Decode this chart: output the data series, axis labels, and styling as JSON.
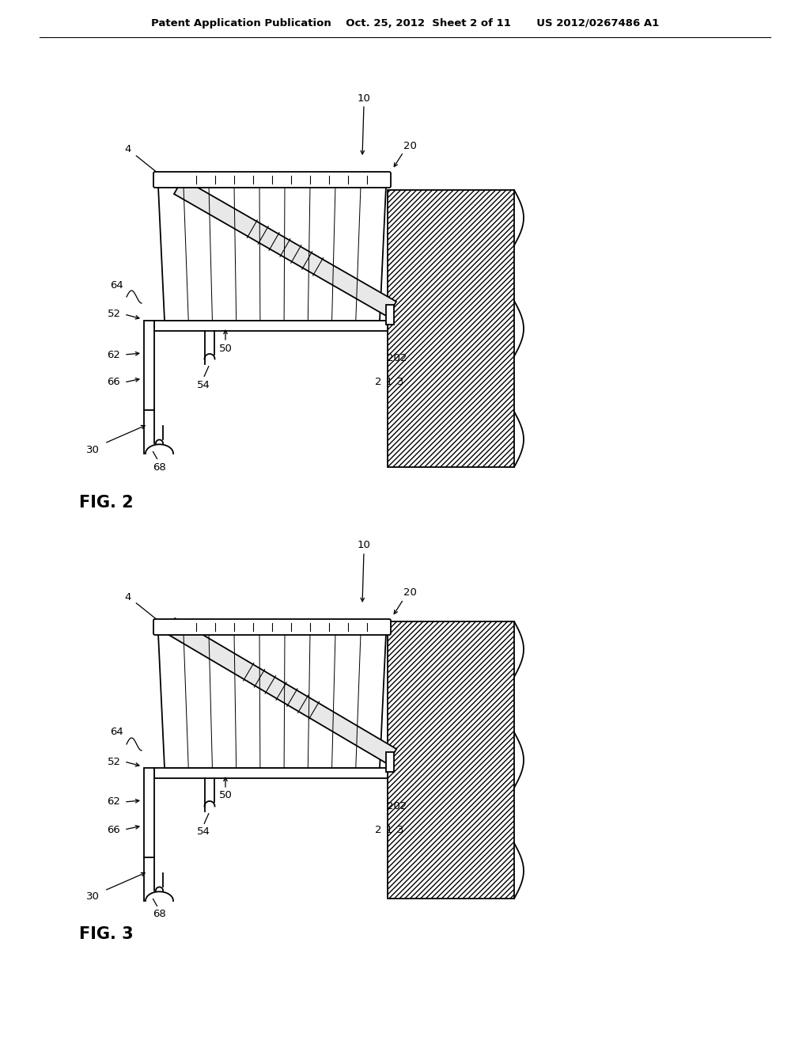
{
  "header": "Patent Application Publication    Oct. 25, 2012  Sheet 2 of 11       US 2012/0267486 A1",
  "bg": "#ffffff",
  "lc": "#000000",
  "fig2_label": "FIG. 2",
  "fig3_label": "FIG. 3"
}
